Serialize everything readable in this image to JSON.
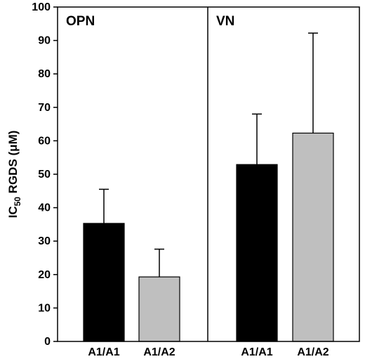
{
  "chart_data": {
    "type": "bar",
    "ylabel_main": "IC",
    "ylabel_sub": "50",
    "ylabel_rest": " RGDS (μM)",
    "ylim": [
      0,
      100
    ],
    "yticks": [
      0,
      10,
      20,
      30,
      40,
      50,
      60,
      70,
      80,
      90,
      100
    ],
    "grid": false,
    "error_bars": "upper",
    "panels": [
      {
        "label": "OPN",
        "bars": [
          {
            "category": "A1/A1",
            "value": 35.3,
            "error": 10.2,
            "color": "#000000"
          },
          {
            "category": "A1/A2",
            "value": 19.3,
            "error": 8.3,
            "color": "#bfbfbf"
          }
        ]
      },
      {
        "label": "VN",
        "bars": [
          {
            "category": "A1/A1",
            "value": 52.9,
            "error": 15.1,
            "color": "#000000"
          },
          {
            "category": "A1/A2",
            "value": 62.3,
            "error": 29.9,
            "color": "#bfbfbf"
          }
        ]
      }
    ]
  }
}
